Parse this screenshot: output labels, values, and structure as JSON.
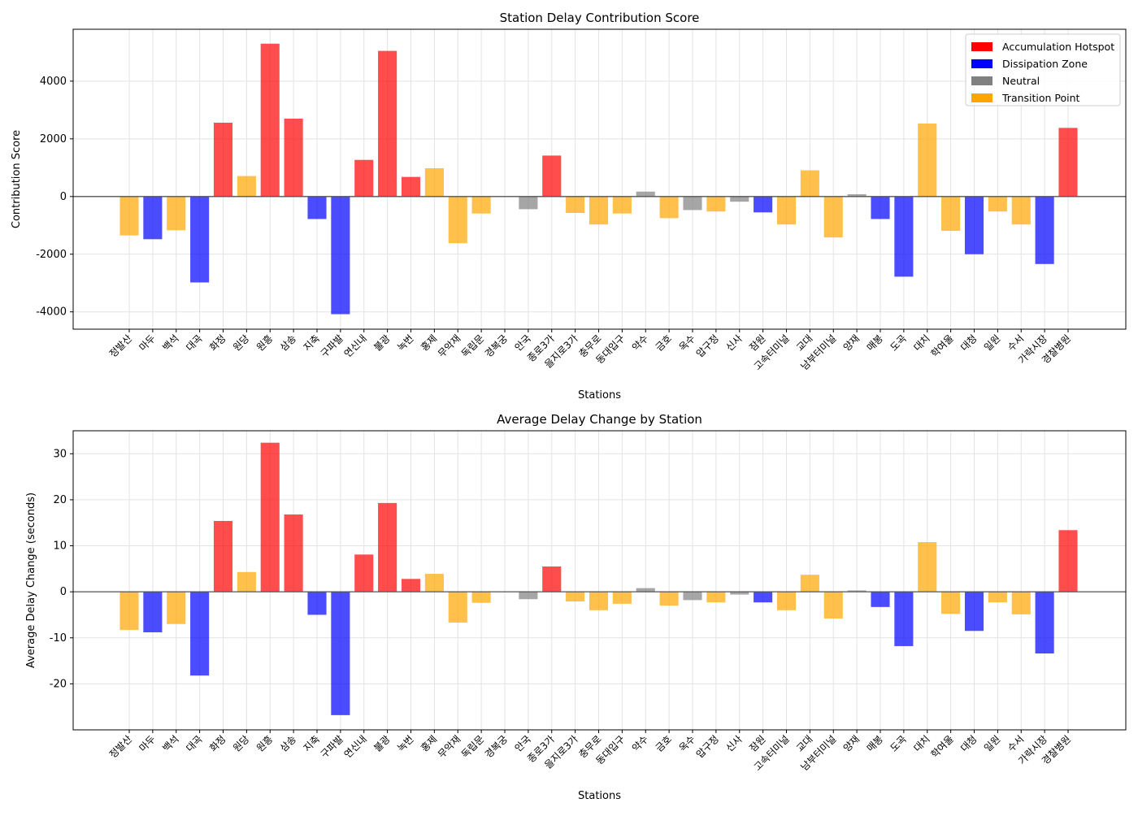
{
  "colors": {
    "Accumulation Hotspot": "#ff0000",
    "Dissipation Zone": "#0000ff",
    "Neutral": "#808080",
    "Transition Point": "#ffa500"
  },
  "chart_data": [
    {
      "type": "bar",
      "title": "Station Delay Contribution Score",
      "xlabel": "Stations",
      "ylabel": "Contribution Score",
      "ylim": [
        -4600,
        5800
      ],
      "yticks": [
        -4000,
        -2000,
        0,
        2000,
        4000
      ],
      "grid": true,
      "legend_placement": "top-right",
      "legend": [
        "Accumulation Hotspot",
        "Dissipation Zone",
        "Neutral",
        "Transition Point"
      ],
      "categories": [
        "정발산",
        "마두",
        "백석",
        "대곡",
        "화정",
        "원당",
        "원흥",
        "삼송",
        "지축",
        "구파발",
        "연신내",
        "불광",
        "녹번",
        "홍제",
        "무악재",
        "독립문",
        "경복궁",
        "안국",
        "종로3가",
        "을지로3가",
        "충무로",
        "동대입구",
        "약수",
        "금호",
        "옥수",
        "압구정",
        "신사",
        "잠원",
        "고속터미널",
        "교대",
        "남부터미널",
        "양재",
        "매봉",
        "도곡",
        "대치",
        "학여울",
        "대청",
        "일원",
        "수서",
        "가락시장",
        "경찰병원"
      ],
      "values": [
        -1350,
        -1480,
        -1170,
        -2980,
        2560,
        710,
        5300,
        2700,
        -780,
        -4080,
        1270,
        5050,
        680,
        980,
        -1620,
        -590,
        0,
        -440,
        1420,
        -570,
        -970,
        -590,
        170,
        -750,
        -470,
        -520,
        -180,
        -550,
        -970,
        910,
        -1420,
        80,
        -780,
        -2780,
        2530,
        -1190,
        -2000,
        -520,
        -970,
        -2340,
        2380
      ],
      "categories_class": [
        "Transition Point",
        "Dissipation Zone",
        "Transition Point",
        "Dissipation Zone",
        "Accumulation Hotspot",
        "Transition Point",
        "Accumulation Hotspot",
        "Accumulation Hotspot",
        "Dissipation Zone",
        "Dissipation Zone",
        "Accumulation Hotspot",
        "Accumulation Hotspot",
        "Accumulation Hotspot",
        "Transition Point",
        "Transition Point",
        "Transition Point",
        "Neutral",
        "Neutral",
        "Accumulation Hotspot",
        "Transition Point",
        "Transition Point",
        "Transition Point",
        "Neutral",
        "Transition Point",
        "Neutral",
        "Transition Point",
        "Neutral",
        "Dissipation Zone",
        "Transition Point",
        "Transition Point",
        "Transition Point",
        "Neutral",
        "Dissipation Zone",
        "Dissipation Zone",
        "Transition Point",
        "Transition Point",
        "Dissipation Zone",
        "Transition Point",
        "Transition Point",
        "Dissipation Zone",
        "Accumulation Hotspot"
      ]
    },
    {
      "type": "bar",
      "title": "Average Delay Change by Station",
      "xlabel": "Stations",
      "ylabel": "Average Delay Change (seconds)",
      "ylim": [
        -30,
        35
      ],
      "yticks": [
        -20,
        -10,
        0,
        10,
        20,
        30
      ],
      "grid": true,
      "categories": [
        "정발산",
        "마두",
        "백석",
        "대곡",
        "화정",
        "원당",
        "원흥",
        "삼송",
        "지축",
        "구파발",
        "연신내",
        "불광",
        "녹번",
        "홍제",
        "무악재",
        "독립문",
        "경복궁",
        "안국",
        "종로3가",
        "을지로3가",
        "충무로",
        "동대입구",
        "약수",
        "금호",
        "옥수",
        "압구정",
        "신사",
        "잠원",
        "고속터미널",
        "교대",
        "남부터미널",
        "양재",
        "매봉",
        "도곡",
        "대치",
        "학여울",
        "대청",
        "일원",
        "수서",
        "가락시장",
        "경찰병원"
      ],
      "values": [
        -8.3,
        -8.8,
        -7.0,
        -18.2,
        15.4,
        4.3,
        32.4,
        16.8,
        -5.0,
        -26.8,
        8.1,
        19.3,
        2.8,
        3.9,
        -6.7,
        -2.4,
        0,
        -1.6,
        5.5,
        -2.1,
        -4.0,
        -2.6,
        0.8,
        -3.0,
        -1.8,
        -2.3,
        -0.6,
        -2.3,
        -4.0,
        3.7,
        -5.8,
        0.3,
        -3.3,
        -11.8,
        10.8,
        -4.8,
        -8.5,
        -2.3,
        -4.9,
        -13.4,
        13.4
      ],
      "categories_class": [
        "Transition Point",
        "Dissipation Zone",
        "Transition Point",
        "Dissipation Zone",
        "Accumulation Hotspot",
        "Transition Point",
        "Accumulation Hotspot",
        "Accumulation Hotspot",
        "Dissipation Zone",
        "Dissipation Zone",
        "Accumulation Hotspot",
        "Accumulation Hotspot",
        "Accumulation Hotspot",
        "Transition Point",
        "Transition Point",
        "Transition Point",
        "Neutral",
        "Neutral",
        "Accumulation Hotspot",
        "Transition Point",
        "Transition Point",
        "Transition Point",
        "Neutral",
        "Transition Point",
        "Neutral",
        "Transition Point",
        "Neutral",
        "Dissipation Zone",
        "Transition Point",
        "Transition Point",
        "Transition Point",
        "Neutral",
        "Dissipation Zone",
        "Dissipation Zone",
        "Transition Point",
        "Transition Point",
        "Dissipation Zone",
        "Transition Point",
        "Transition Point",
        "Dissipation Zone",
        "Accumulation Hotspot"
      ]
    }
  ]
}
